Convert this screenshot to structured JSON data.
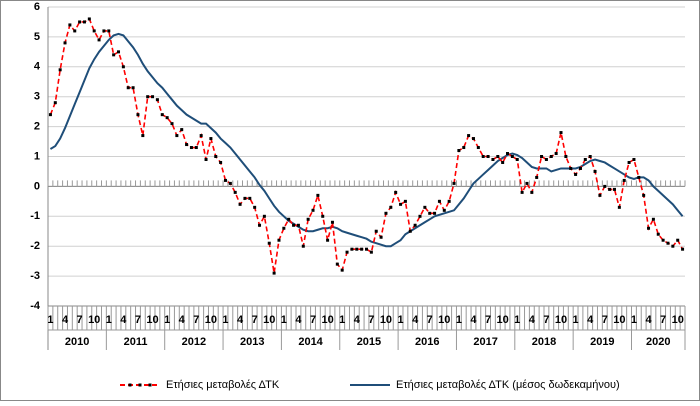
{
  "chart_data": {
    "type": "line",
    "categories": [
      "1",
      null,
      null,
      "4",
      null,
      null,
      "7",
      null,
      null,
      "10",
      null,
      null,
      "1",
      null,
      null,
      "4",
      null,
      null,
      "7",
      null,
      null,
      "10",
      null,
      null,
      "1",
      null,
      null,
      "4",
      null,
      null,
      "7",
      null,
      null,
      "10",
      null,
      null,
      "1",
      null,
      null,
      "4",
      null,
      null,
      "7",
      null,
      null,
      "10",
      null,
      null,
      "1",
      null,
      null,
      "4",
      null,
      null,
      "7",
      null,
      null,
      "10",
      null,
      null,
      "1",
      null,
      null,
      "4",
      null,
      null,
      "7",
      null,
      null,
      "10",
      null,
      null,
      "1",
      null,
      null,
      "4",
      null,
      null,
      "7",
      null,
      null,
      "10",
      null,
      null,
      "1",
      null,
      null,
      "4",
      null,
      null,
      "7",
      null,
      null,
      "10",
      null,
      null,
      "1",
      null,
      null,
      "4",
      null,
      null,
      "7",
      null,
      null,
      "10",
      null,
      null,
      "1",
      null,
      null,
      "4",
      null,
      null,
      "7",
      null,
      null,
      "10",
      null,
      null,
      "1",
      null,
      null,
      "4",
      null,
      null,
      "7",
      null,
      null,
      "10",
      null
    ],
    "years": [
      "2010",
      "2011",
      "2012",
      "2013",
      "2014",
      "2015",
      "2016",
      "2017",
      "2018",
      "2019",
      "2020"
    ],
    "series": [
      {
        "name": "Ετήσιες μεταβολές ΔΤΚ",
        "color": "#ff0000",
        "line_style": "dashed",
        "marker": "square",
        "marker_color": "#000000",
        "values": [
          2.4,
          2.8,
          3.9,
          4.8,
          5.4,
          5.2,
          5.5,
          5.5,
          5.6,
          5.2,
          4.9,
          5.2,
          5.2,
          4.4,
          4.5,
          4.0,
          3.3,
          3.3,
          2.4,
          1.7,
          3.0,
          3.0,
          2.9,
          2.4,
          2.3,
          2.1,
          1.7,
          1.9,
          1.4,
          1.3,
          1.3,
          1.7,
          0.9,
          1.6,
          1.0,
          0.8,
          0.2,
          0.1,
          -0.2,
          -0.6,
          -0.4,
          -0.4,
          -0.7,
          -1.3,
          -1.0,
          -1.9,
          -2.9,
          -1.8,
          -1.4,
          -1.1,
          -1.3,
          -1.3,
          -2.0,
          -1.1,
          -0.8,
          -0.3,
          -1.0,
          -1.8,
          -1.2,
          -2.6,
          -2.8,
          -2.2,
          -2.1,
          -2.1,
          -2.1,
          -2.1,
          -2.2,
          -1.5,
          -1.7,
          -0.9,
          -0.7,
          -0.2,
          -0.6,
          -0.5,
          -1.5,
          -1.3,
          -1.0,
          -0.7,
          -0.9,
          -0.9,
          -0.5,
          -0.8,
          -0.5,
          0.1,
          1.2,
          1.3,
          1.7,
          1.6,
          1.3,
          1.0,
          1.0,
          0.9,
          1.0,
          0.8,
          1.1,
          1.0,
          0.9,
          -0.2,
          0.1,
          -0.2,
          0.3,
          1.0,
          0.9,
          1.0,
          1.1,
          1.8,
          1.0,
          0.6,
          0.4,
          0.6,
          0.9,
          1.0,
          0.5,
          -0.3,
          0.0,
          -0.1,
          -0.1,
          -0.7,
          0.2,
          0.8,
          0.9,
          0.3,
          -0.3,
          -1.4,
          -1.1,
          -1.6,
          -1.8,
          -1.9,
          -2.0,
          -1.8,
          -2.1
        ]
      },
      {
        "name": "Ετήσιες μεταβολές ΔΤΚ (μέσος δωδεκαμήνου)",
        "color": "#1f4e79",
        "line_style": "solid",
        "values": [
          1.25,
          1.35,
          1.6,
          1.95,
          2.35,
          2.75,
          3.15,
          3.55,
          3.95,
          4.25,
          4.5,
          4.7,
          4.9,
          5.05,
          5.1,
          5.05,
          4.85,
          4.65,
          4.4,
          4.1,
          3.85,
          3.65,
          3.45,
          3.3,
          3.1,
          2.9,
          2.7,
          2.55,
          2.4,
          2.3,
          2.2,
          2.1,
          2.1,
          1.95,
          1.8,
          1.6,
          1.45,
          1.3,
          1.1,
          0.9,
          0.7,
          0.5,
          0.3,
          0.05,
          -0.15,
          -0.4,
          -0.65,
          -0.85,
          -1.0,
          -1.15,
          -1.25,
          -1.35,
          -1.45,
          -1.5,
          -1.5,
          -1.45,
          -1.4,
          -1.4,
          -1.35,
          -1.4,
          -1.5,
          -1.55,
          -1.6,
          -1.65,
          -1.7,
          -1.75,
          -1.85,
          -1.9,
          -1.95,
          -2.0,
          -2.0,
          -1.9,
          -1.8,
          -1.6,
          -1.5,
          -1.4,
          -1.3,
          -1.2,
          -1.1,
          -1.0,
          -0.95,
          -0.9,
          -0.85,
          -0.8,
          -0.6,
          -0.4,
          -0.15,
          0.1,
          0.25,
          0.4,
          0.55,
          0.7,
          0.85,
          0.95,
          1.05,
          1.1,
          1.05,
          0.95,
          0.8,
          0.65,
          0.6,
          0.6,
          0.6,
          0.5,
          0.55,
          0.6,
          0.6,
          0.6,
          0.6,
          0.65,
          0.75,
          0.85,
          0.9,
          0.85,
          0.8,
          0.7,
          0.6,
          0.5,
          0.4,
          0.3,
          0.25,
          0.3,
          0.3,
          0.2,
          0.0,
          -0.15,
          -0.3,
          -0.45,
          -0.6,
          -0.8,
          -1.0
        ]
      }
    ],
    "ylim": [
      -4,
      6
    ],
    "yticks": [
      -4,
      -3,
      -2,
      -1,
      0,
      1,
      2,
      3,
      4,
      5,
      6
    ],
    "grid": true,
    "legend": "bottom"
  }
}
